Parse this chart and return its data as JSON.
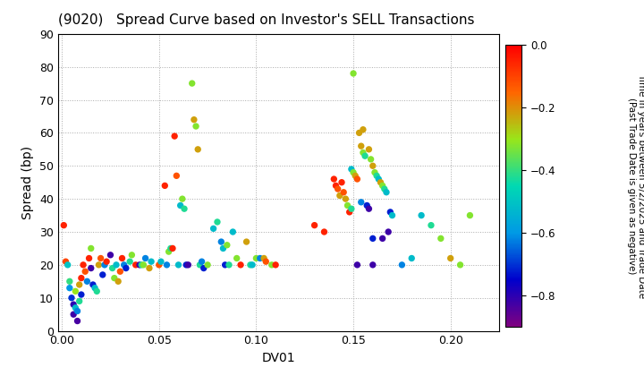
{
  "title": "(9020)   Spread Curve based on Investor's SELL Transactions",
  "xlabel": "DV01",
  "ylabel": "Spread (bp)",
  "xlim": [
    -0.002,
    0.225
  ],
  "ylim": [
    0,
    90
  ],
  "xticks": [
    0.0,
    0.05,
    0.1,
    0.15,
    0.2
  ],
  "yticks": [
    0,
    10,
    20,
    30,
    40,
    50,
    60,
    70,
    80,
    90
  ],
  "cbar_ticks": [
    0.0,
    -0.2,
    -0.4,
    -0.6,
    -0.8
  ],
  "cbar_label": "Time in years between 5/2/2025 and Trade Date\n(Past Trade Date is given as negative)",
  "scatter_data": [
    [
      0.001,
      32,
      -0.05
    ],
    [
      0.002,
      21,
      -0.1
    ],
    [
      0.003,
      20,
      -0.5
    ],
    [
      0.004,
      15,
      -0.4
    ],
    [
      0.004,
      13,
      -0.6
    ],
    [
      0.005,
      10,
      -0.7
    ],
    [
      0.006,
      8,
      -0.8
    ],
    [
      0.006,
      5,
      -0.82
    ],
    [
      0.007,
      12,
      -0.3
    ],
    [
      0.007,
      7,
      -0.52
    ],
    [
      0.008,
      3,
      -0.83
    ],
    [
      0.008,
      6,
      -0.62
    ],
    [
      0.009,
      14,
      -0.22
    ],
    [
      0.009,
      9,
      -0.42
    ],
    [
      0.01,
      16,
      -0.05
    ],
    [
      0.01,
      11,
      -0.72
    ],
    [
      0.011,
      20,
      -0.05
    ],
    [
      0.012,
      18,
      -0.12
    ],
    [
      0.013,
      15,
      -0.62
    ],
    [
      0.014,
      22,
      -0.05
    ],
    [
      0.015,
      25,
      -0.32
    ],
    [
      0.015,
      19,
      -0.82
    ],
    [
      0.016,
      14,
      -0.72
    ],
    [
      0.017,
      13,
      -0.52
    ],
    [
      0.018,
      12,
      -0.42
    ],
    [
      0.019,
      20,
      -0.22
    ],
    [
      0.02,
      22,
      -0.12
    ],
    [
      0.021,
      17,
      -0.72
    ],
    [
      0.022,
      20,
      -0.62
    ],
    [
      0.023,
      21,
      -0.05
    ],
    [
      0.025,
      23,
      -0.82
    ],
    [
      0.026,
      19,
      -0.42
    ],
    [
      0.027,
      16,
      -0.32
    ],
    [
      0.028,
      20,
      -0.52
    ],
    [
      0.029,
      15,
      -0.22
    ],
    [
      0.03,
      18,
      -0.12
    ],
    [
      0.031,
      22,
      -0.05
    ],
    [
      0.032,
      20,
      -0.62
    ],
    [
      0.033,
      19,
      -0.72
    ],
    [
      0.035,
      21,
      -0.42
    ],
    [
      0.036,
      23,
      -0.32
    ],
    [
      0.038,
      20,
      -0.05
    ],
    [
      0.04,
      20,
      -0.82
    ],
    [
      0.041,
      20,
      -0.42
    ],
    [
      0.042,
      20,
      -0.32
    ],
    [
      0.043,
      22,
      -0.62
    ],
    [
      0.045,
      19,
      -0.22
    ],
    [
      0.046,
      21,
      -0.52
    ],
    [
      0.05,
      20,
      -0.12
    ],
    [
      0.051,
      21,
      -0.52
    ],
    [
      0.053,
      44,
      -0.05
    ],
    [
      0.054,
      20,
      -0.62
    ],
    [
      0.055,
      24,
      -0.32
    ],
    [
      0.056,
      25,
      -0.42
    ],
    [
      0.057,
      25,
      -0.05
    ],
    [
      0.058,
      59,
      -0.05
    ],
    [
      0.059,
      47,
      -0.12
    ],
    [
      0.06,
      20,
      -0.52
    ],
    [
      0.061,
      38,
      -0.52
    ],
    [
      0.062,
      40,
      -0.32
    ],
    [
      0.063,
      37,
      -0.42
    ],
    [
      0.064,
      20,
      -0.72
    ],
    [
      0.065,
      20,
      -0.82
    ],
    [
      0.067,
      75,
      -0.32
    ],
    [
      0.068,
      64,
      -0.22
    ],
    [
      0.069,
      62,
      -0.32
    ],
    [
      0.07,
      55,
      -0.22
    ],
    [
      0.071,
      20,
      -0.42
    ],
    [
      0.072,
      21,
      -0.62
    ],
    [
      0.073,
      19,
      -0.72
    ],
    [
      0.075,
      20,
      -0.32
    ],
    [
      0.078,
      31,
      -0.52
    ],
    [
      0.08,
      33,
      -0.42
    ],
    [
      0.082,
      27,
      -0.62
    ],
    [
      0.083,
      25,
      -0.52
    ],
    [
      0.084,
      20,
      -0.72
    ],
    [
      0.085,
      26,
      -0.32
    ],
    [
      0.086,
      20,
      -0.42
    ],
    [
      0.088,
      30,
      -0.52
    ],
    [
      0.09,
      22,
      -0.32
    ],
    [
      0.092,
      20,
      -0.05
    ],
    [
      0.095,
      27,
      -0.22
    ],
    [
      0.097,
      20,
      -0.42
    ],
    [
      0.098,
      20,
      -0.52
    ],
    [
      0.1,
      22,
      -0.32
    ],
    [
      0.102,
      22,
      -0.62
    ],
    [
      0.104,
      22,
      -0.22
    ],
    [
      0.105,
      21,
      -0.12
    ],
    [
      0.108,
      20,
      -0.32
    ],
    [
      0.11,
      20,
      -0.05
    ],
    [
      0.13,
      32,
      -0.05
    ],
    [
      0.135,
      30,
      -0.05
    ],
    [
      0.14,
      46,
      -0.05
    ],
    [
      0.141,
      44,
      -0.05
    ],
    [
      0.142,
      43,
      -0.12
    ],
    [
      0.143,
      41,
      -0.22
    ],
    [
      0.144,
      45,
      -0.05
    ],
    [
      0.145,
      42,
      -0.12
    ],
    [
      0.146,
      40,
      -0.22
    ],
    [
      0.147,
      38,
      -0.32
    ],
    [
      0.148,
      36,
      -0.05
    ],
    [
      0.149,
      37,
      -0.42
    ],
    [
      0.149,
      49,
      -0.52
    ],
    [
      0.15,
      48,
      -0.32
    ],
    [
      0.15,
      78,
      -0.32
    ],
    [
      0.151,
      47,
      -0.22
    ],
    [
      0.152,
      46,
      -0.12
    ],
    [
      0.153,
      60,
      -0.22
    ],
    [
      0.154,
      56,
      -0.22
    ],
    [
      0.154,
      39,
      -0.62
    ],
    [
      0.155,
      54,
      -0.32
    ],
    [
      0.156,
      53,
      -0.42
    ],
    [
      0.157,
      38,
      -0.72
    ],
    [
      0.158,
      37,
      -0.82
    ],
    [
      0.158,
      55,
      -0.22
    ],
    [
      0.159,
      52,
      -0.32
    ],
    [
      0.16,
      50,
      -0.22
    ],
    [
      0.16,
      20,
      -0.82
    ],
    [
      0.161,
      48,
      -0.32
    ],
    [
      0.162,
      47,
      -0.42
    ],
    [
      0.163,
      46,
      -0.52
    ],
    [
      0.164,
      45,
      -0.22
    ],
    [
      0.165,
      44,
      -0.32
    ],
    [
      0.165,
      28,
      -0.82
    ],
    [
      0.166,
      43,
      -0.42
    ],
    [
      0.167,
      42,
      -0.52
    ],
    [
      0.168,
      30,
      -0.82
    ],
    [
      0.169,
      36,
      -0.72
    ],
    [
      0.17,
      35,
      -0.52
    ],
    [
      0.175,
      20,
      -0.62
    ],
    [
      0.18,
      22,
      -0.52
    ],
    [
      0.185,
      35,
      -0.52
    ],
    [
      0.19,
      32,
      -0.42
    ],
    [
      0.195,
      28,
      -0.32
    ],
    [
      0.2,
      22,
      -0.22
    ],
    [
      0.205,
      20,
      -0.32
    ],
    [
      0.21,
      35,
      -0.32
    ],
    [
      0.152,
      20,
      -0.82
    ],
    [
      0.155,
      61,
      -0.22
    ],
    [
      0.16,
      28,
      -0.72
    ]
  ],
  "point_size": 28,
  "background_color": "#ffffff",
  "grid_color": "#aaaaaa",
  "vmin": -0.9,
  "vmax": 0.0
}
